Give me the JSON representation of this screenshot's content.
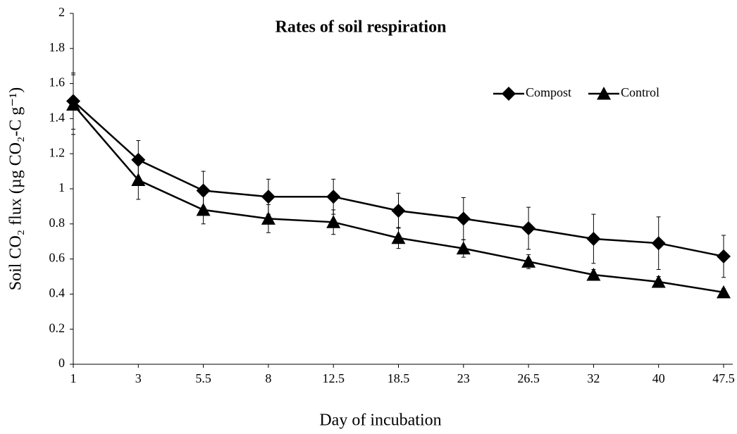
{
  "chart_data": {
    "type": "line",
    "title": "Rates of soil respiration",
    "xlabel": "Day of incubation",
    "ylabel": "Soil CO₂ flux (µg CO₂-C g⁻¹)",
    "categories": [
      "1",
      "3",
      "5.5",
      "8",
      "12.5",
      "18.5",
      "23",
      "26.5",
      "32",
      "40",
      "47.5"
    ],
    "series": [
      {
        "name": "Compost",
        "color": "#000000",
        "marker": "diamond",
        "values": [
          1.5,
          1.165,
          0.99,
          0.955,
          0.955,
          0.875,
          0.83,
          0.775,
          0.715,
          0.69,
          0.615
        ],
        "errors": [
          0.16,
          0.11,
          0.11,
          0.1,
          0.1,
          0.1,
          0.12,
          0.12,
          0.14,
          0.15,
          0.12
        ]
      },
      {
        "name": "Control",
        "color": "#000000",
        "marker": "triangle",
        "values": [
          1.48,
          1.05,
          0.88,
          0.83,
          0.81,
          0.72,
          0.66,
          0.585,
          0.51,
          0.47,
          0.41
        ],
        "errors": [
          0.17,
          0.11,
          0.08,
          0.08,
          0.07,
          0.06,
          0.05,
          0.04,
          0.03,
          0.03,
          0.02
        ]
      }
    ],
    "ylim": [
      0,
      2
    ],
    "yticks": [
      0,
      0.2,
      0.4,
      0.6,
      0.8,
      1,
      1.2,
      1.4,
      1.6,
      1.8,
      2
    ],
    "grid": false,
    "legend": "top-right"
  }
}
